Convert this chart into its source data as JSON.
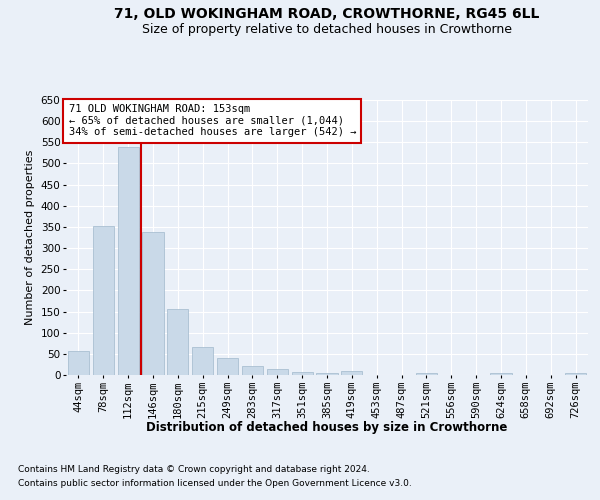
{
  "title1": "71, OLD WOKINGHAM ROAD, CROWTHORNE, RG45 6LL",
  "title2": "Size of property relative to detached houses in Crowthorne",
  "xlabel": "Distribution of detached houses by size in Crowthorne",
  "ylabel": "Number of detached properties",
  "footer1": "Contains HM Land Registry data © Crown copyright and database right 2024.",
  "footer2": "Contains public sector information licensed under the Open Government Licence v3.0.",
  "bar_labels": [
    "44sqm",
    "78sqm",
    "112sqm",
    "146sqm",
    "180sqm",
    "215sqm",
    "249sqm",
    "283sqm",
    "317sqm",
    "351sqm",
    "385sqm",
    "419sqm",
    "453sqm",
    "487sqm",
    "521sqm",
    "556sqm",
    "590sqm",
    "624sqm",
    "658sqm",
    "692sqm",
    "726sqm"
  ],
  "bar_values": [
    57,
    353,
    540,
    338,
    155,
    67,
    40,
    22,
    15,
    8,
    5,
    10,
    0,
    0,
    5,
    0,
    0,
    5,
    0,
    0,
    5
  ],
  "bar_color": "#c9d9e8",
  "bar_edgecolor": "#a0b8cc",
  "property_label": "71 OLD WOKINGHAM ROAD: 153sqm",
  "annotation_line1": "← 65% of detached houses are smaller (1,044)",
  "annotation_line2": "34% of semi-detached houses are larger (542) →",
  "vline_color": "#cc0000",
  "vline_x_index": 2.5,
  "annotation_box_color": "#ffffff",
  "annotation_box_edgecolor": "#cc0000",
  "ylim": [
    0,
    650
  ],
  "yticks": [
    0,
    50,
    100,
    150,
    200,
    250,
    300,
    350,
    400,
    450,
    500,
    550,
    600,
    650
  ],
  "bg_color": "#eaf0f8",
  "plot_bg_color": "#eaf0f8",
  "grid_color": "#ffffff",
  "title1_fontsize": 10,
  "title2_fontsize": 9,
  "xlabel_fontsize": 8.5,
  "ylabel_fontsize": 8,
  "tick_fontsize": 7.5,
  "annotation_fontsize": 7.5,
  "footer_fontsize": 6.5
}
